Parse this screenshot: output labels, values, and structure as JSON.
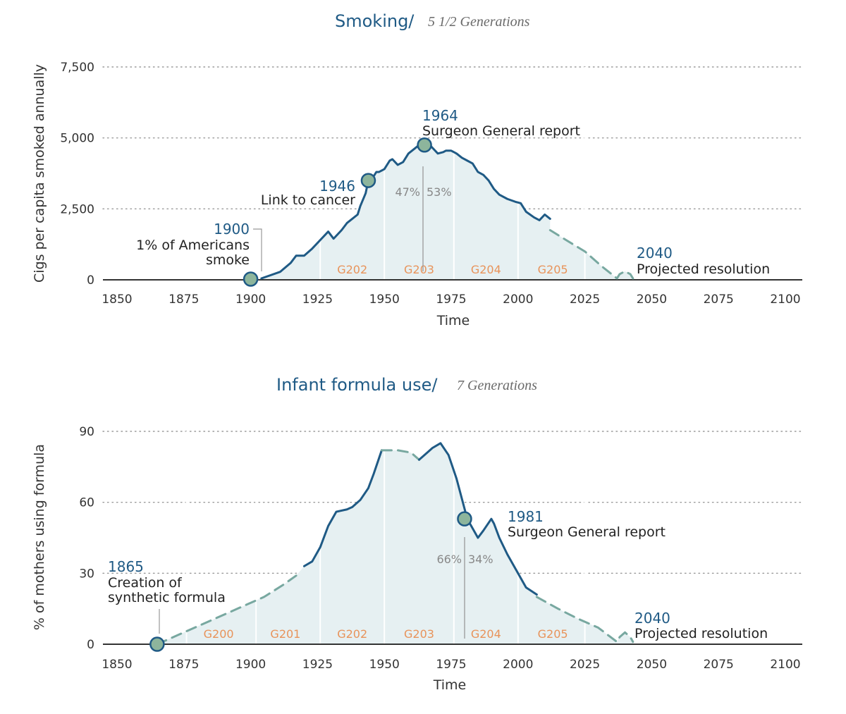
{
  "chart_data": [
    {
      "type": "line",
      "title": "Smoking/",
      "subtitle": "5 1/2 Generations",
      "xlabel": "Time",
      "ylabel": "Cigs per capita smoked annually",
      "xlim": [
        1850,
        2100
      ],
      "ylim": [
        0,
        7500
      ],
      "x_ticks": [
        "1850",
        "1875",
        "1900",
        "1925",
        "1950",
        "1975",
        "2000",
        "2025",
        "2050",
        "2075",
        "2100"
      ],
      "y_ticks": [
        "0",
        "2,500",
        "5,000",
        "7,500"
      ],
      "grid": "horizontal dotted",
      "series": [
        {
          "style": "solid",
          "x": [
            1904,
            1911,
            1915,
            1917,
            1920,
            1923,
            1926,
            1929,
            1931,
            1934,
            1936,
            1938,
            1940,
            1941,
            1943,
            1944,
            1946,
            1947,
            1948,
            1950,
            1952,
            1953,
            1955,
            1957,
            1959,
            1961,
            1963,
            1964,
            1966,
            1968,
            1970,
            1972,
            1973,
            1975,
            1977,
            1979,
            1981,
            1983,
            1985,
            1987,
            1989,
            1991,
            1993,
            1996,
            1999,
            2001,
            2003,
            2006,
            2008,
            2010,
            2012
          ],
          "y": [
            50,
            280,
            600,
            850,
            850,
            1100,
            1400,
            1700,
            1450,
            1750,
            2000,
            2150,
            2300,
            2600,
            3050,
            3500,
            3650,
            3800,
            3800,
            3900,
            4200,
            4250,
            4050,
            4150,
            4450,
            4600,
            4750,
            4700,
            4850,
            4650,
            4450,
            4500,
            4550,
            4550,
            4450,
            4300,
            4200,
            4100,
            3800,
            3700,
            3500,
            3200,
            3000,
            2850,
            2750,
            2700,
            2400,
            2200,
            2100,
            2300,
            2150
          ]
        },
        {
          "style": "dashed projection",
          "x": [
            2012,
            2018,
            2025,
            2031,
            2037,
            2038,
            2040,
            2042,
            2043
          ],
          "y": [
            1750,
            1400,
            1000,
            500,
            50,
            200,
            300,
            200,
            50
          ]
        }
      ],
      "generations": [
        "G202",
        "G203",
        "G204",
        "G205"
      ],
      "annotations": [
        {
          "year": "1900",
          "text": [
            "1% of Americans",
            "smoke"
          ],
          "x": 1900,
          "y": 25
        },
        {
          "year": "1946",
          "text": [
            "Link to cancer"
          ],
          "x": 1944,
          "y": 3500
        },
        {
          "year": "1964",
          "text": [
            "Surgeon General report"
          ],
          "x": 1965,
          "y": 4750
        },
        {
          "year": "2040",
          "text": [
            "Projected resolution"
          ]
        }
      ],
      "split": {
        "left": "47%",
        "right": "53%"
      }
    },
    {
      "type": "line",
      "title": "Infant formula use/",
      "subtitle": "7 Generations",
      "xlabel": "Time",
      "ylabel": "% of mothers using formula",
      "xlim": [
        1850,
        2100
      ],
      "ylim": [
        0,
        90
      ],
      "x_ticks": [
        "1850",
        "1875",
        "1900",
        "1925",
        "1950",
        "1975",
        "2000",
        "2025",
        "2050",
        "2075",
        "2100"
      ],
      "y_ticks": [
        "0",
        "30",
        "60",
        "90"
      ],
      "grid": "horizontal dotted",
      "series": [
        {
          "style": "dashed",
          "x": [
            1865,
            1875,
            1885,
            1895,
            1905,
            1912,
            1917
          ],
          "y": [
            0,
            5,
            10,
            15,
            20,
            25,
            29
          ]
        },
        {
          "style": "solid",
          "x": [
            1920,
            1923,
            1926,
            1929,
            1932,
            1936,
            1938,
            1941,
            1944,
            1946,
            1949
          ],
          "y": [
            33,
            35,
            41,
            50,
            56,
            57,
            58,
            61,
            66,
            72,
            82
          ]
        },
        {
          "style": "dashed",
          "x": [
            1949,
            1955,
            1960,
            1963
          ],
          "y": [
            82,
            82,
            81,
            78
          ]
        },
        {
          "style": "solid",
          "x": [
            1963,
            1966,
            1968,
            1971,
            1974,
            1977,
            1981,
            1985,
            1987,
            1990,
            1991,
            1993,
            1996,
            1999,
            2003,
            2007
          ],
          "y": [
            78,
            81,
            83,
            85,
            80,
            70,
            53,
            45,
            48,
            53,
            51,
            45,
            38,
            32,
            24,
            21
          ]
        },
        {
          "style": "dashed projection",
          "x": [
            2007,
            2015,
            2022,
            2030,
            2037,
            2038,
            2040,
            2042,
            2043
          ],
          "y": [
            20,
            15,
            11,
            7,
            1,
            3,
            5,
            3,
            1
          ]
        }
      ],
      "generations": [
        "G200",
        "G201",
        "G202",
        "G203",
        "G204",
        "G205"
      ],
      "annotations": [
        {
          "year": "1865",
          "text": [
            "Creation of",
            "synthetic formula"
          ],
          "x": 1865,
          "y": 0
        },
        {
          "year": "1981",
          "text": [
            "Surgeon General report"
          ],
          "x": 1980,
          "y": 53
        },
        {
          "year": "2040",
          "text": [
            "Projected resolution"
          ]
        }
      ],
      "split": {
        "left": "66%",
        "right": "34%"
      }
    }
  ],
  "colors": {
    "line": "#1f5a85",
    "projection": "#78a8a0",
    "fill": "#e6f0f2",
    "marker": "#8db59c",
    "generation_label": "#e8935a",
    "split_text": "#888888"
  }
}
